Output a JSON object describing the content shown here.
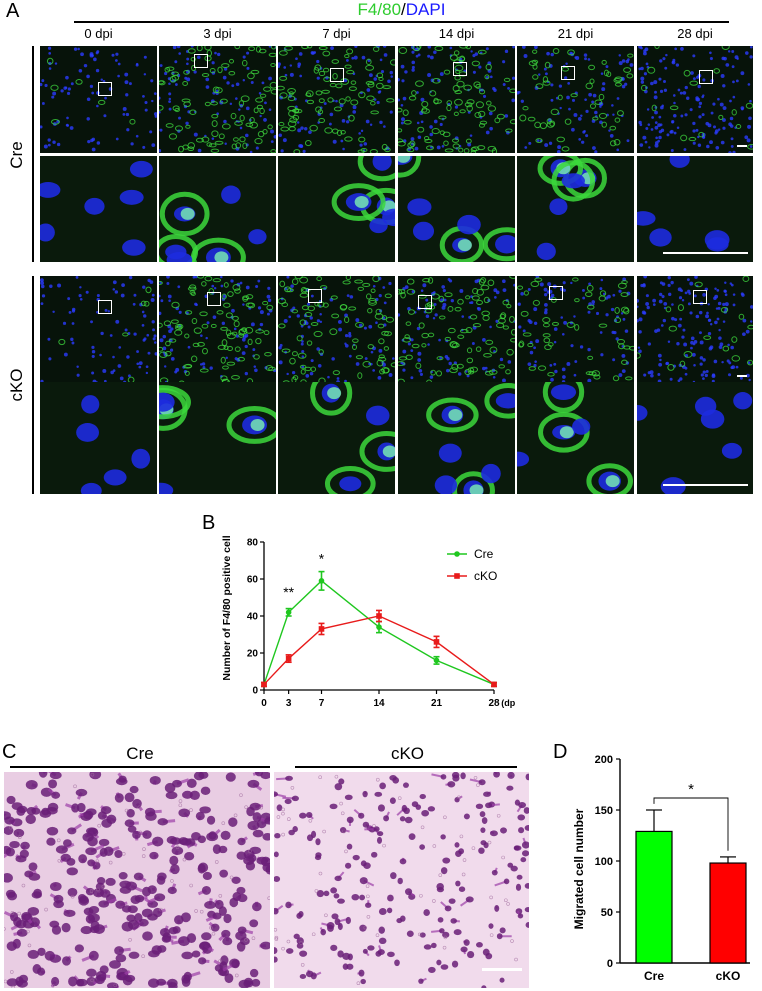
{
  "panelA": {
    "letter": "A",
    "title_green": "F4/80",
    "title_sep": "/",
    "title_blue": "DAPI",
    "columns": [
      "0 dpi",
      "3 dpi",
      "7 dpi",
      "14 dpi",
      "21 dpi",
      "28 dpi"
    ],
    "rows": [
      "Cre",
      "cKO"
    ],
    "colors": {
      "green": "#2ecc2e",
      "blue": "#1a1aff"
    }
  },
  "panelB": {
    "letter": "B"
  },
  "panelC": {
    "letter": "C",
    "labels": [
      "Cre",
      "cKO"
    ]
  },
  "panelD": {
    "letter": "D"
  },
  "chart_data": [
    {
      "type": "line",
      "ylabel": "Number of F4/80 positive cell",
      "xlabel": "(dpi)",
      "x": [
        0,
        3,
        7,
        14,
        21,
        28
      ],
      "xticks": [
        "0",
        "3",
        "7",
        "14",
        "21",
        "28"
      ],
      "ylim": [
        0,
        80
      ],
      "yticks": [
        "0",
        "20",
        "40",
        "60",
        "80"
      ],
      "series": [
        {
          "name": "Cre",
          "color": "#1fc71f",
          "values": [
            3,
            42,
            59,
            34,
            16,
            3
          ],
          "errors": [
            1,
            2,
            5,
            3,
            2,
            1
          ]
        },
        {
          "name": "cKO",
          "color": "#e81b1b",
          "values": [
            3,
            17,
            33,
            40,
            26,
            3
          ],
          "errors": [
            1,
            2,
            3,
            3,
            3,
            1
          ]
        }
      ],
      "annotations": [
        {
          "x": 3,
          "text": "**"
        },
        {
          "x": 7,
          "text": "*"
        }
      ],
      "legend": "top-right"
    },
    {
      "type": "bar",
      "ylabel": "Migrated cell number",
      "categories": [
        "Cre",
        "cKO"
      ],
      "values": [
        129,
        98
      ],
      "errors": [
        21,
        6
      ],
      "colors": [
        "#00ff00",
        "#ff0000"
      ],
      "ylim": [
        0,
        200
      ],
      "yticks": [
        "0",
        "50",
        "100",
        "150",
        "200"
      ],
      "annotations": [
        {
          "text": "*"
        }
      ]
    }
  ]
}
